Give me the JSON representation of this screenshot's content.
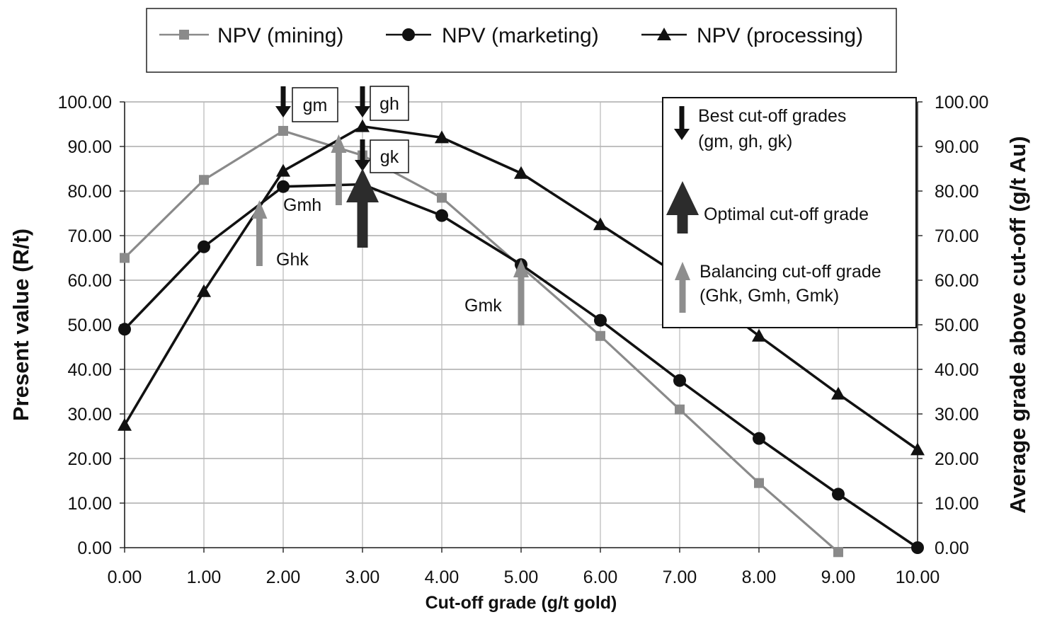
{
  "chart_data": {
    "type": "line",
    "xlabel": "Cut-off grade (g/t gold)",
    "ylabel": "Present value (R/t)",
    "y2label": "Average grade above cut-off (g/t Au)",
    "x": [
      0,
      1,
      2,
      3,
      4,
      5,
      6,
      7,
      8,
      9,
      10
    ],
    "x_tick_labels": [
      "0.00",
      "1.00",
      "2.00",
      "3.00",
      "4.00",
      "5.00",
      "6.00",
      "7.00",
      "8.00",
      "9.00",
      "10.00"
    ],
    "xlim": [
      0,
      10
    ],
    "ylim": [
      0,
      100
    ],
    "y_tick_labels": [
      "0.00",
      "10.00",
      "20.00",
      "30.00",
      "40.00",
      "50.00",
      "60.00",
      "70.00",
      "80.00",
      "90.00",
      "100.00"
    ],
    "y2_tick_labels": [
      "0.00",
      "10.00",
      "20.00",
      "30.00",
      "40.00",
      "50.00",
      "60.00",
      "70.00",
      "80.00",
      "90.00",
      "100.00"
    ],
    "grid": true,
    "legend_position": "top",
    "series": [
      {
        "name": "NPV (mining)",
        "marker": "square",
        "color": "#8a8a8a",
        "x": [
          0,
          1,
          2,
          3,
          4,
          5,
          6,
          7,
          8,
          9
        ],
        "values": [
          65.0,
          82.5,
          93.5,
          88.0,
          78.5,
          63.0,
          47.5,
          31.0,
          14.5,
          -1.0
        ]
      },
      {
        "name": "NPV (marketing)",
        "marker": "circle",
        "color": "#111111",
        "x": [
          0,
          1,
          2,
          3,
          4,
          5,
          6,
          7,
          8,
          9,
          10
        ],
        "values": [
          49.0,
          67.5,
          81.0,
          81.5,
          74.5,
          63.5,
          51.0,
          37.5,
          24.5,
          12.0,
          0.0
        ]
      },
      {
        "name": "NPV (processing)",
        "marker": "triangle",
        "color": "#111111",
        "x": [
          0,
          1,
          2,
          3,
          4,
          5,
          6,
          7,
          8,
          9,
          10
        ],
        "values": [
          27.5,
          57.5,
          84.5,
          94.5,
          92.0,
          84.0,
          72.5,
          61.0,
          47.5,
          34.5,
          22.0
        ]
      }
    ],
    "best_cutoffs": [
      {
        "label": "gm",
        "x": 2.0
      },
      {
        "label": "gh",
        "x": 3.0
      },
      {
        "label": "gk",
        "x": 3.0
      }
    ],
    "balancing_cutoffs": [
      {
        "label": "Ghk",
        "x": 1.7
      },
      {
        "label": "Gmh",
        "x": 2.7
      },
      {
        "label": "Gmk",
        "x": 5.0
      }
    ],
    "optimal_cutoff": {
      "x": 3.0
    },
    "annotation_legend": [
      {
        "symbol": "down-arrow",
        "lines": [
          "Best cut-off grades",
          "(gm, gh, gk)"
        ]
      },
      {
        "symbol": "optimal-arrow",
        "lines": [
          "Optimal cut-off grade"
        ]
      },
      {
        "symbol": "balancing-arrow",
        "lines": [
          "Balancing cut-off grade",
          "(Ghk, Gmh, Gmk)"
        ]
      }
    ]
  }
}
